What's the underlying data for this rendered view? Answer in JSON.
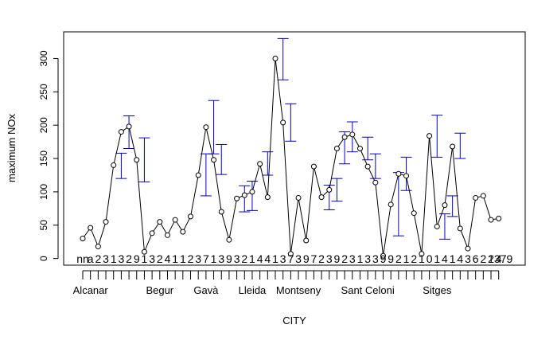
{
  "chart_data": {
    "type": "line",
    "xlabel": "CITY",
    "ylabel": "maximum NOx",
    "ylim": [
      0,
      330
    ],
    "y_ticks": [
      0,
      50,
      100,
      150,
      200,
      250,
      300
    ],
    "x_tick_labels": [
      "Alcanar",
      "Begur",
      "Gavà",
      "Lleida",
      "Montseny",
      "Sant Celoni",
      "Sitges"
    ],
    "x_tick_label_index": [
      1,
      10,
      16,
      22,
      28,
      37,
      46
    ],
    "values": [
      30,
      46,
      18,
      55,
      140,
      190,
      198,
      148,
      10,
      38,
      55,
      35,
      58,
      40,
      63,
      125,
      197,
      148,
      70,
      28,
      90,
      95,
      100,
      142,
      92,
      300,
      204,
      7,
      91,
      27,
      138,
      92,
      103,
      165,
      182,
      186,
      165,
      138,
      114,
      4,
      81,
      127,
      124,
      68,
      7,
      184,
      48,
      80,
      168,
      45,
      15,
      91,
      94,
      58,
      60
    ],
    "error_bars": [
      {
        "i": 5,
        "low": 120,
        "high": 158
      },
      {
        "i": 6,
        "low": 165,
        "high": 214
      },
      {
        "i": 8,
        "low": 115,
        "high": 181
      },
      {
        "i": 16,
        "low": 94,
        "high": 157
      },
      {
        "i": 17,
        "low": 157,
        "high": 237
      },
      {
        "i": 18,
        "low": 126,
        "high": 171
      },
      {
        "i": 21,
        "low": 70,
        "high": 109
      },
      {
        "i": 22,
        "low": 72,
        "high": 116
      },
      {
        "i": 24,
        "low": 125,
        "high": 160
      },
      {
        "i": 26,
        "low": 268,
        "high": 330
      },
      {
        "i": 27,
        "low": 176,
        "high": 232
      },
      {
        "i": 32,
        "low": 73,
        "high": 110
      },
      {
        "i": 33,
        "low": 86,
        "high": 120
      },
      {
        "i": 34,
        "low": 142,
        "high": 190
      },
      {
        "i": 35,
        "low": 160,
        "high": 205
      },
      {
        "i": 37,
        "low": 148,
        "high": 182
      },
      {
        "i": 38,
        "low": 120,
        "high": 157
      },
      {
        "i": 41,
        "low": 34,
        "high": 129
      },
      {
        "i": 42,
        "low": 102,
        "high": 152
      },
      {
        "i": 46,
        "low": 152,
        "high": 215
      },
      {
        "i": 47,
        "low": 29,
        "high": 67
      },
      {
        "i": 48,
        "low": 63,
        "high": 94
      },
      {
        "i": 49,
        "low": 150,
        "high": 188
      }
    ],
    "point_labels": [
      "nn",
      "a",
      "2",
      "3",
      "1",
      "3",
      "2",
      "9",
      "1",
      "3",
      "2",
      "4",
      "1",
      "1",
      "2",
      "3",
      "7",
      "1",
      "3",
      "9",
      "3",
      "2",
      "1",
      "4",
      "4",
      "1",
      "3",
      "7",
      "3",
      "9",
      "7",
      "2",
      "3",
      "9",
      "2",
      "3",
      "1",
      "3",
      "3",
      "9",
      "9",
      "2",
      "1",
      "2",
      "1",
      "0",
      "1",
      "4",
      "1",
      "4",
      "3",
      "6",
      "2",
      "1",
      "4"
    ],
    "point_labels_tail": "2379",
    "colors": {
      "line": "#000000",
      "error_bar": "#0000cc",
      "axis": "#000000"
    }
  }
}
